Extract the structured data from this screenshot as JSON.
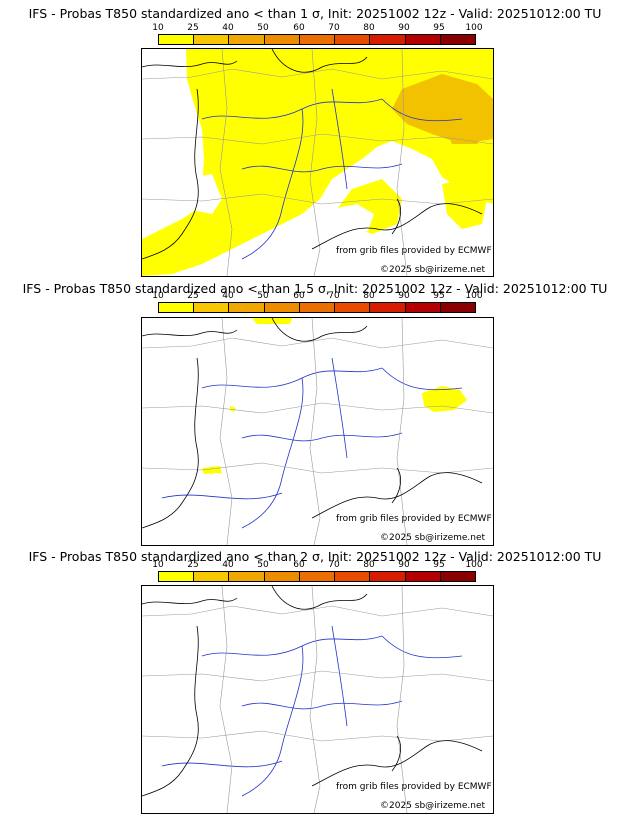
{
  "legend": {
    "ticks": [
      "10",
      "25",
      "40",
      "50",
      "60",
      "70",
      "80",
      "90",
      "95",
      "100"
    ],
    "colors": [
      "#ffff00",
      "#f7c700",
      "#f0a800",
      "#ee8c00",
      "#ea6e00",
      "#e84a00",
      "#d81c00",
      "#b40000",
      "#8a0000"
    ]
  },
  "panels": [
    {
      "title": "IFS - Probas T850  standardized ano < than 1 σ, Init: 20251002 12z - Valid: 20251012:00 TU",
      "credit": "from grib files provided by ECMWF",
      "copyright": "©2025 sb@irizeme.net"
    },
    {
      "title": "IFS - Probas T850  standardized ano < than 1.5 σ, Init: 20251002 12z - Valid: 20251012:00 TU",
      "credit": "from grib files provided by ECMWF",
      "copyright": "©2025 sb@irizeme.net"
    },
    {
      "title": "IFS - Probas T850  standardized ano < than 2 σ, Init: 20251002 12z - Valid: 20251012:00 TU",
      "credit": "from grib files provided by ECMWF",
      "copyright": "©2025 sb@irizeme.net"
    }
  ],
  "colors": {
    "coast": "#000000",
    "rivers": "#2233cc",
    "borders": "#999999",
    "fill1": "#ffff00",
    "fill2": "#f2c200"
  }
}
